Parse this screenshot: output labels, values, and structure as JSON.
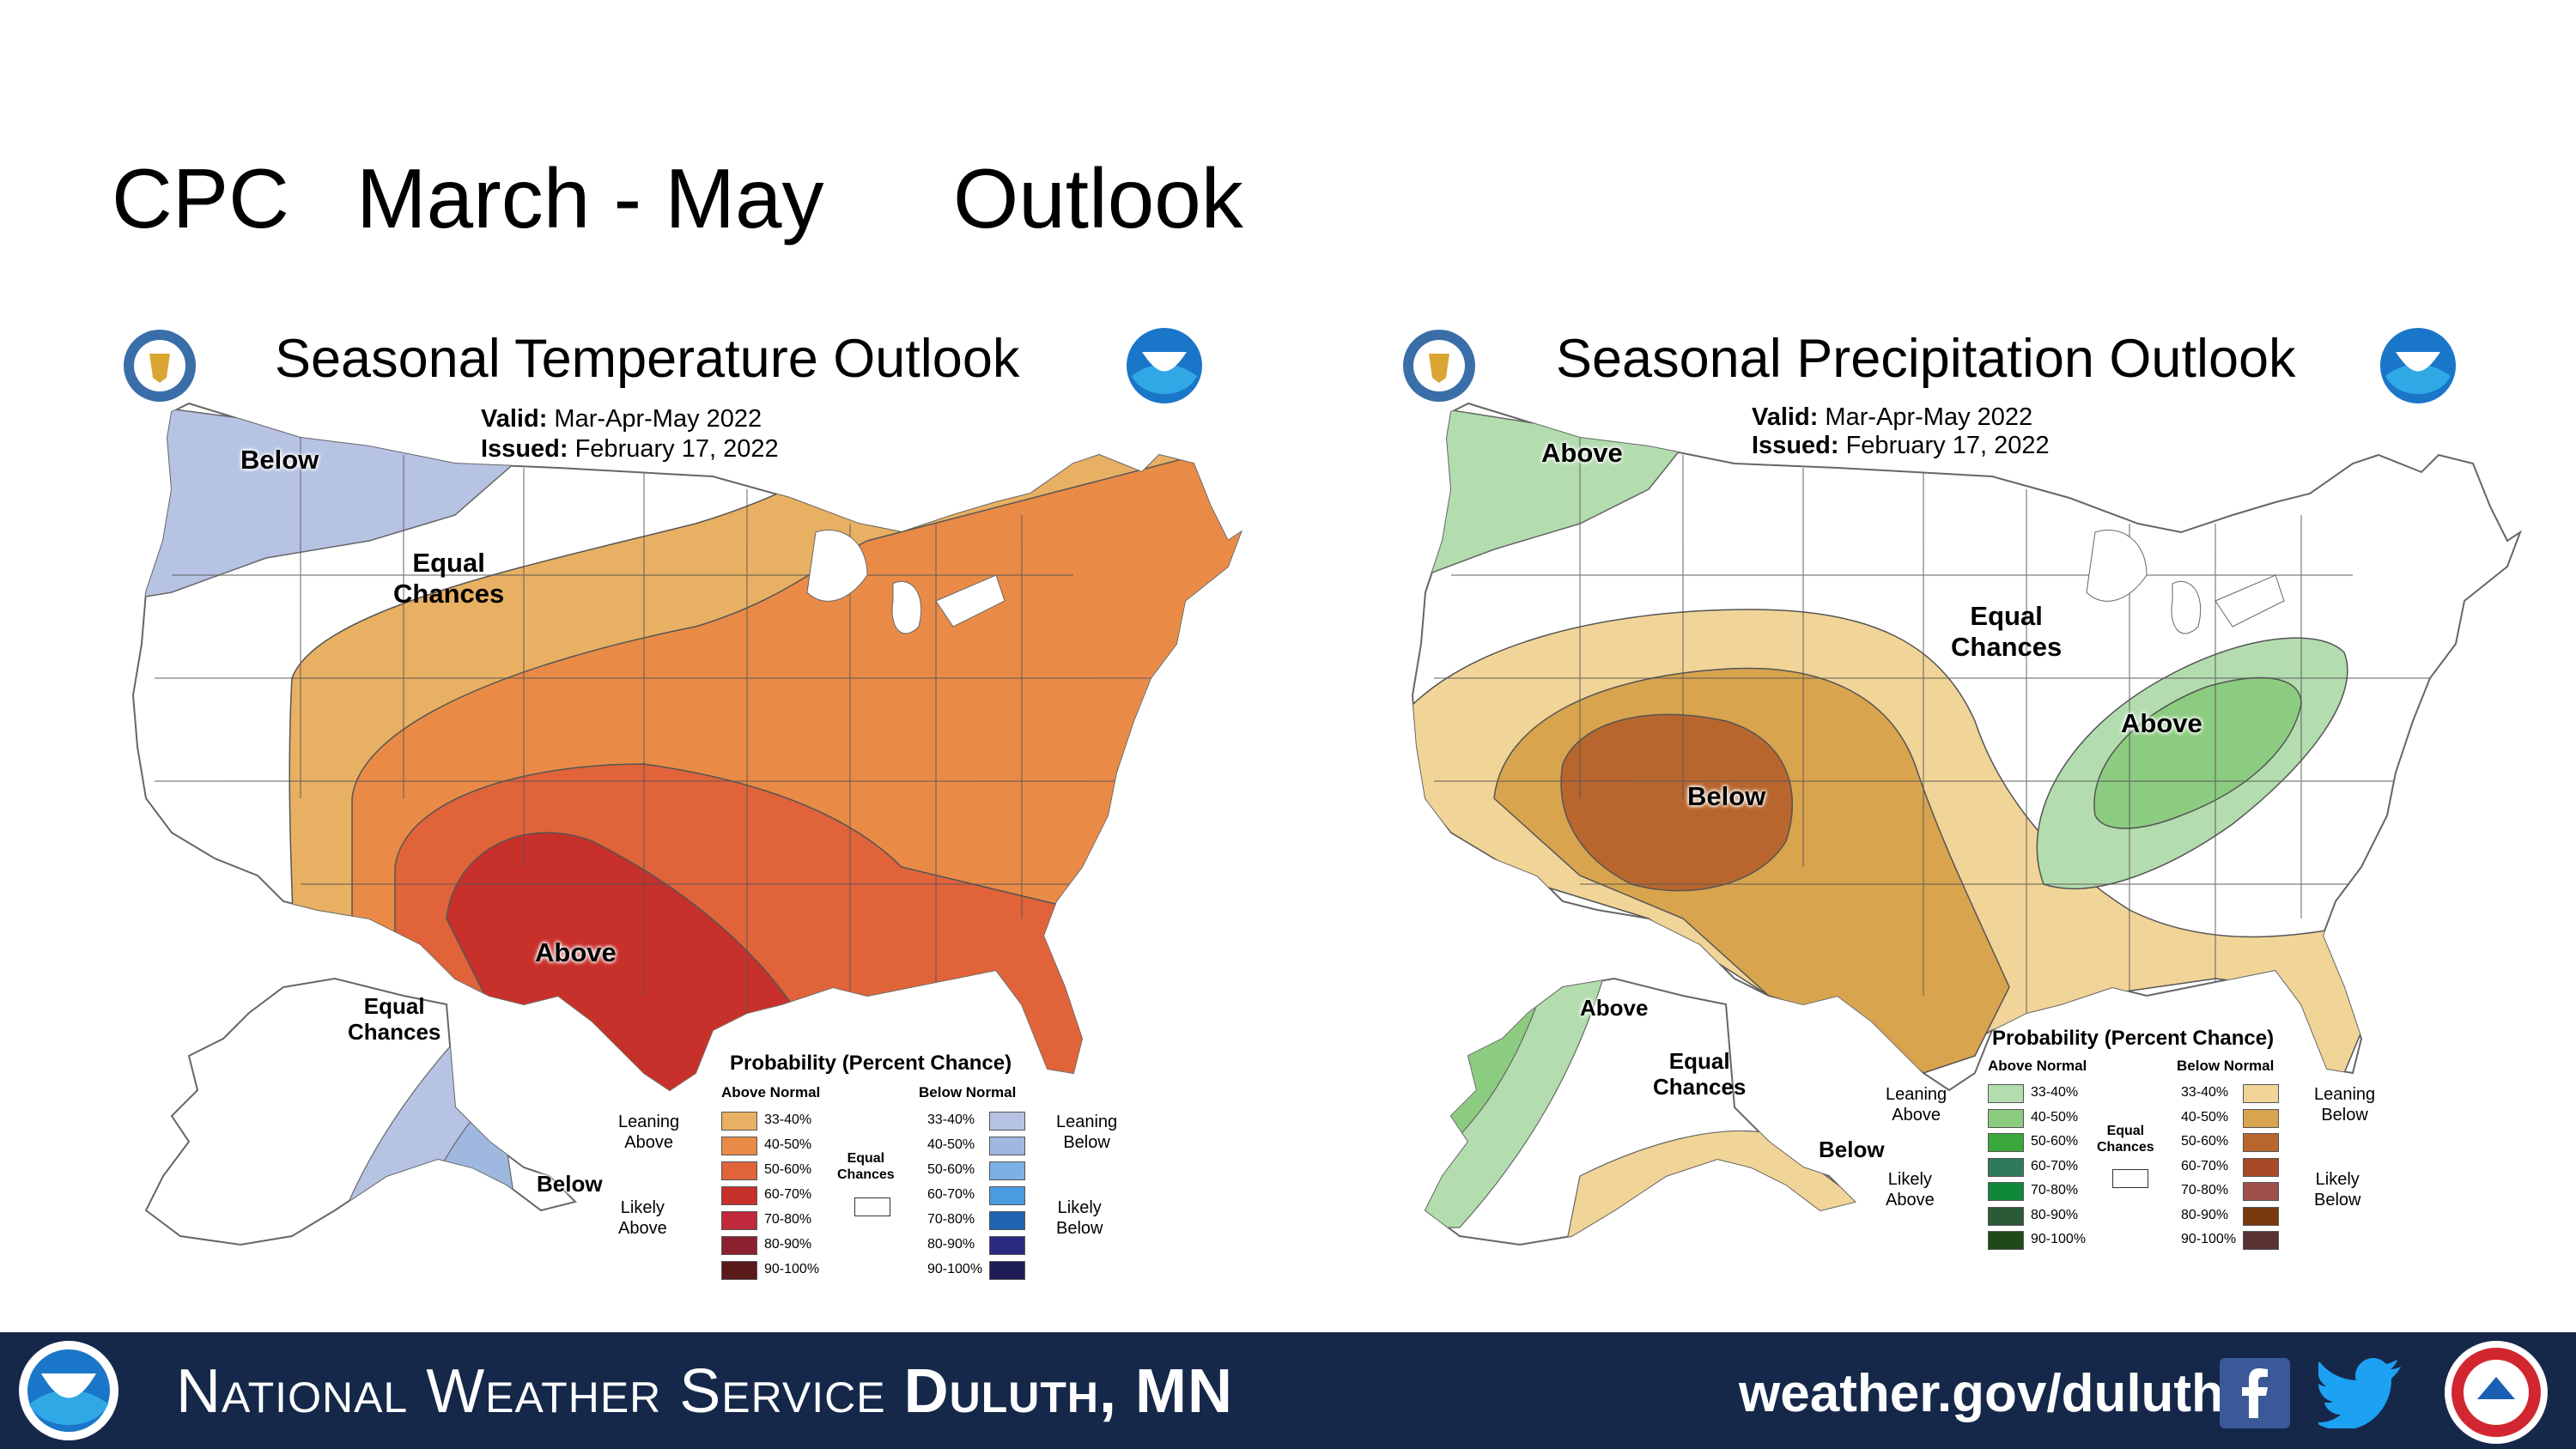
{
  "slide": {
    "title_parts": [
      "CPC",
      "March - May",
      "Outlook"
    ]
  },
  "temperature": {
    "title": "Seasonal Temperature Outlook",
    "valid_label": "Valid:",
    "valid_value": "Mar-Apr-May 2022",
    "issued_label": "Issued:",
    "issued_value": "February 17, 2022",
    "map_labels": {
      "below_nw": "Below",
      "equal_chances": "Equal\nChances",
      "above": "Above",
      "alaska_equal": "Equal\nChances",
      "alaska_below": "Below"
    },
    "legend": {
      "title": "Probability (Percent Chance)",
      "above_head": "Above Normal",
      "below_head": "Below Normal",
      "leaning_above": "Leaning\nAbove",
      "likely_above": "Likely\nAbove",
      "leaning_below": "Leaning\nBelow",
      "likely_below": "Likely\nBelow",
      "equal": "Equal\nChances",
      "ranges": [
        "33-40%",
        "40-50%",
        "50-60%",
        "60-70%",
        "70-80%",
        "80-90%",
        "90-100%"
      ],
      "above_colors": [
        "#e8b062",
        "#e98b47",
        "#e0633a",
        "#c8302b",
        "#c0283c",
        "#8c2030",
        "#5a1a1a"
      ],
      "below_colors": [
        "#b6c3e3",
        "#9eb8e0",
        "#7cb1e3",
        "#4a9ce0",
        "#1f64b0",
        "#2a2a80",
        "#1e1c55"
      ]
    }
  },
  "precipitation": {
    "title": "Seasonal Precipitation Outlook",
    "valid_label": "Valid:",
    "valid_value": "Mar-Apr-May 2022",
    "issued_label": "Issued:",
    "issued_value": "February 17, 2022",
    "map_labels": {
      "above_nw": "Above",
      "equal_chances": "Equal\nChances",
      "above_ov": "Above",
      "below": "Below",
      "alaska_above": "Above",
      "alaska_equal": "Equal\nChances",
      "alaska_below": "Below"
    },
    "legend": {
      "title": "Probability (Percent Chance)",
      "above_head": "Above Normal",
      "below_head": "Below Normal",
      "leaning_above": "Leaning\nAbove",
      "likely_above": "Likely\nAbove",
      "leaning_below": "Leaning\nBelow",
      "likely_below": "Likely\nBelow",
      "equal": "Equal\nChances",
      "ranges": [
        "33-40%",
        "40-50%",
        "50-60%",
        "60-70%",
        "70-80%",
        "80-90%",
        "90-100%"
      ],
      "above_colors": [
        "#b3dcaf",
        "#8ccc80",
        "#3aa83a",
        "#2f7a5a",
        "#10883a",
        "#2a5a38",
        "#1e4a18"
      ],
      "below_colors": [
        "#f1d497",
        "#d9a44e",
        "#b8662e",
        "#a84a28",
        "#a0504a",
        "#7a3a10",
        "#5a3030"
      ]
    }
  },
  "footer": {
    "org_prefix": "National Weather Service",
    "org_office": "Duluth, MN",
    "url": "weather.gov/duluth"
  }
}
